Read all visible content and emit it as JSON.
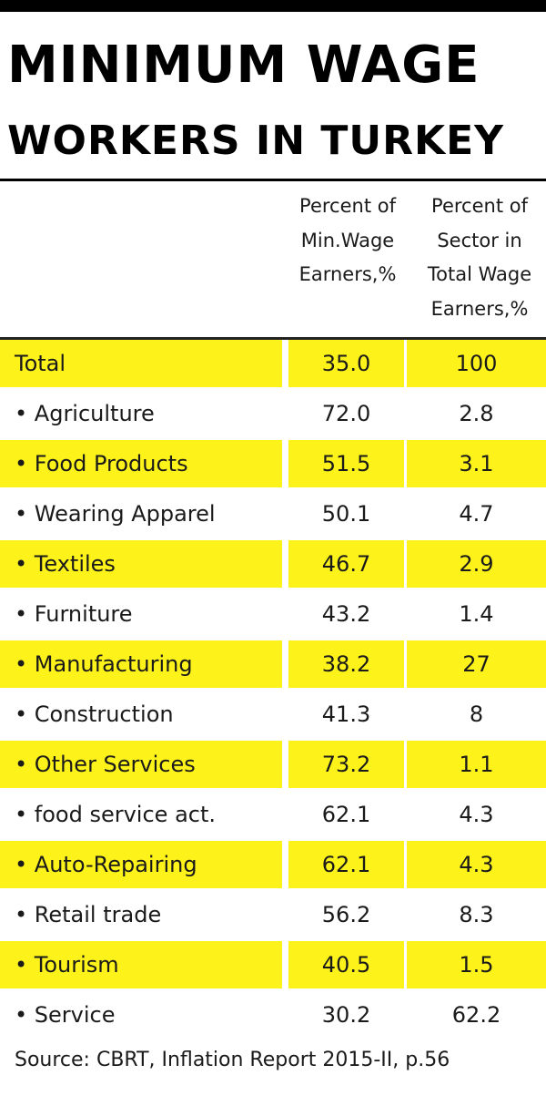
{
  "header": {
    "title_line1": "MINIMUM WAGE",
    "title_line2": "WORKERS IN TURKEY"
  },
  "chart_data": {
    "type": "table",
    "columns": [
      "",
      "Percent of Min.Wage Earners,%",
      "Percent of Sector in Total Wage Earners,%"
    ],
    "column_header_lines": [
      [
        "Percent of",
        "Min.Wage",
        "Earners,%"
      ],
      [
        "Percent of",
        "Sector in",
        "Total Wage",
        "Earners,%"
      ]
    ],
    "rows": [
      {
        "label": "Total",
        "min_wage_pct": "35.0",
        "sector_pct": "100"
      },
      {
        "label": "• Agriculture",
        "min_wage_pct": "72.0",
        "sector_pct": "2.8"
      },
      {
        "label": "• Food Products",
        "min_wage_pct": "51.5",
        "sector_pct": "3.1"
      },
      {
        "label": "• Wearing Apparel",
        "min_wage_pct": "50.1",
        "sector_pct": "4.7"
      },
      {
        "label": "• Textiles",
        "min_wage_pct": "46.7",
        "sector_pct": "2.9"
      },
      {
        "label": "• Furniture",
        "min_wage_pct": "43.2",
        "sector_pct": "1.4"
      },
      {
        "label": "• Manufacturing",
        "min_wage_pct": "38.2",
        "sector_pct": "27"
      },
      {
        "label": "• Construction",
        "min_wage_pct": "41.3",
        "sector_pct": "8"
      },
      {
        "label": "• Other Services",
        "min_wage_pct": "73.2",
        "sector_pct": "1.1"
      },
      {
        "label": "• food service act.",
        "min_wage_pct": "62.1",
        "sector_pct": "4.3"
      },
      {
        "label": "• Auto-Repairing",
        "min_wage_pct": "62.1",
        "sector_pct": "4.3"
      },
      {
        "label": "• Retail trade",
        "min_wage_pct": "56.2",
        "sector_pct": "8.3"
      },
      {
        "label": "• Tourism",
        "min_wage_pct": "40.5",
        "sector_pct": "1.5"
      },
      {
        "label": "• Service",
        "min_wage_pct": "30.2",
        "sector_pct": "62.2"
      }
    ]
  },
  "source": "Source: CBRT, Inflation Report 2015-II, p.56",
  "colors": {
    "highlight": "#fdf31a",
    "text": "#1a1a1a",
    "title": "#000000"
  }
}
